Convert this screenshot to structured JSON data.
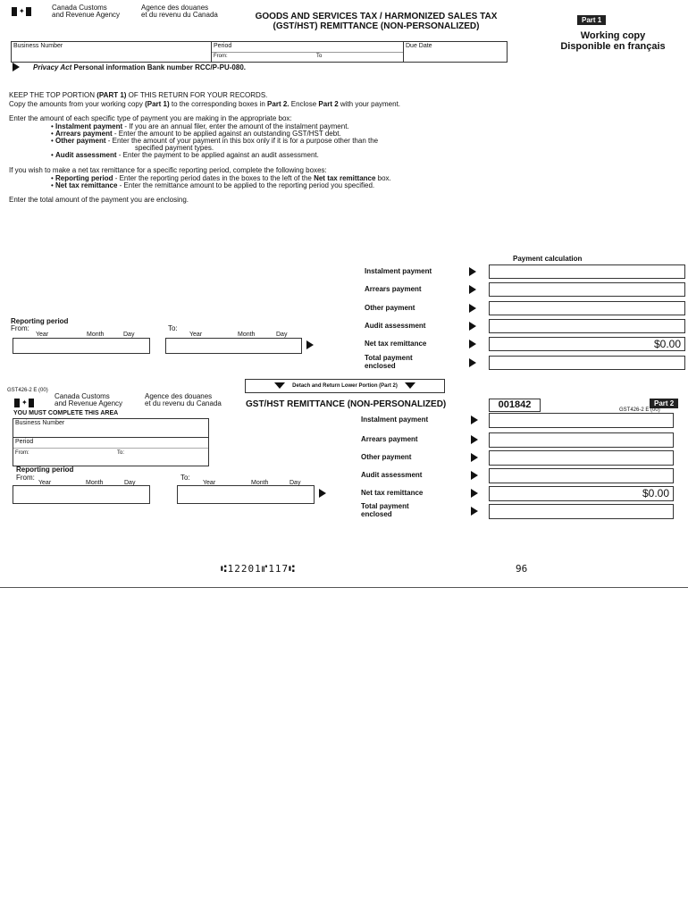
{
  "part1": {
    "agency_en": [
      "Canada Customs",
      "and Revenue Agency"
    ],
    "agency_fr": [
      "Agence des douanes",
      "et du revenu du Canada"
    ],
    "title": [
      "GOODS AND SERVICES TAX / HARMONIZED SALES TAX",
      "(GST/HST) REMITTANCE (NON-PERSONALIZED)"
    ],
    "badge": "Part 1",
    "working_copy": "Working copy",
    "disponible": "Disponible en français",
    "table": {
      "business_number": "Business Number",
      "period": "Period",
      "from": "From:",
      "to": "To",
      "due_date": "Due Date"
    },
    "privacy_italic": "Privacy Act",
    "privacy_rest": " Personal information Bank number RCC/P-PU-080.",
    "instructions": {
      "keep_a": "KEEP THE TOP PORTION ",
      "keep_b": "(PART 1)",
      "keep_c": " OF THIS RETURN FOR YOUR RECORDS.",
      "copy_a": "Copy the amounts from your working copy ",
      "copy_b": "(Part 1)",
      "copy_c": " to the corresponding boxes in ",
      "copy_d": "Part 2.",
      "copy_e": "  Enclose ",
      "copy_f": "Part 2",
      "copy_g": " with your payment.",
      "enter_amount": "Enter the amount of each specific type of payment you are making in the appropriate box:",
      "bullets1": [
        {
          "term": "Instalment payment",
          "text": " - If you are an annual filer, enter the amount of the instalment payment."
        },
        {
          "term": "Arrears payment",
          "text": " - Enter the amount to be applied against an outstanding GST/HST debt."
        },
        {
          "term": "Other payment",
          "text": " - Enter the amount of your payment in this box only if it is for a purpose other than the"
        },
        {
          "term": "Audit assessment",
          "text": " - Enter the payment to be applied against an audit assessment."
        }
      ],
      "other_cont": "specified payment types.",
      "net_intro": "If you wish to make a net tax remittance for a specific reporting period, complete the following boxes:",
      "bullets2": [
        {
          "term": "Reporting period",
          "text": " - Enter the reporting period dates in the boxes to the left of the ",
          "term2": "Net tax remittance",
          "text2": " box."
        },
        {
          "term": "Net tax remittance",
          "text": " - Enter the remittance amount to be applied to the reporting period you specified."
        }
      ],
      "enter_total": "Enter the total amount of the payment you are enclosing."
    },
    "payment_calc": "Payment calculation",
    "rows": [
      {
        "label": "Instalment payment",
        "value": ""
      },
      {
        "label": "Arrears payment",
        "value": ""
      },
      {
        "label": "Other payment",
        "value": ""
      },
      {
        "label": "Audit assessment",
        "value": ""
      },
      {
        "label": "Net tax remittance",
        "value": "$0.00"
      },
      {
        "label": "Total payment",
        "label2": "enclosed",
        "value": ""
      }
    ],
    "reporting": {
      "title": "Reporting period",
      "from": "From:",
      "to": "To:",
      "year": "Year",
      "month": "Month",
      "day": "Day"
    },
    "detach": "Detach and Return Lower Portion (Part 2)",
    "form_code": "GST426-2 E (00)"
  },
  "part2": {
    "agency_en": [
      "Canada Customs",
      "and Revenue Agency"
    ],
    "agency_fr": [
      "Agence des douanes",
      "et du revenu du Canada"
    ],
    "title": "GST/HST REMITTANCE (NON-PERSONALIZED)",
    "number": "001842",
    "badge": "Part 2",
    "form_code": "GST426-2 E (00)",
    "must_complete": "YOU MUST COMPLETE THIS AREA",
    "business_number": "Business Number",
    "period": "Period",
    "from": "From:",
    "to": "To:",
    "reporting": {
      "title": "Reporting period",
      "from": "From:",
      "to": "To:",
      "year": "Year",
      "month": "Month",
      "day": "Day"
    },
    "rows": [
      {
        "label": "Instalment payment",
        "value": ""
      },
      {
        "label": "Arrears payment",
        "value": ""
      },
      {
        "label": "Other payment",
        "value": ""
      },
      {
        "label": "Audit assessment",
        "value": ""
      },
      {
        "label": "Net tax remittance",
        "value": "$0.00"
      },
      {
        "label": "Total payment",
        "label2": "enclosed",
        "value": ""
      }
    ],
    "micr": "⑆12201⑈117⑆",
    "micr_code": "96"
  }
}
